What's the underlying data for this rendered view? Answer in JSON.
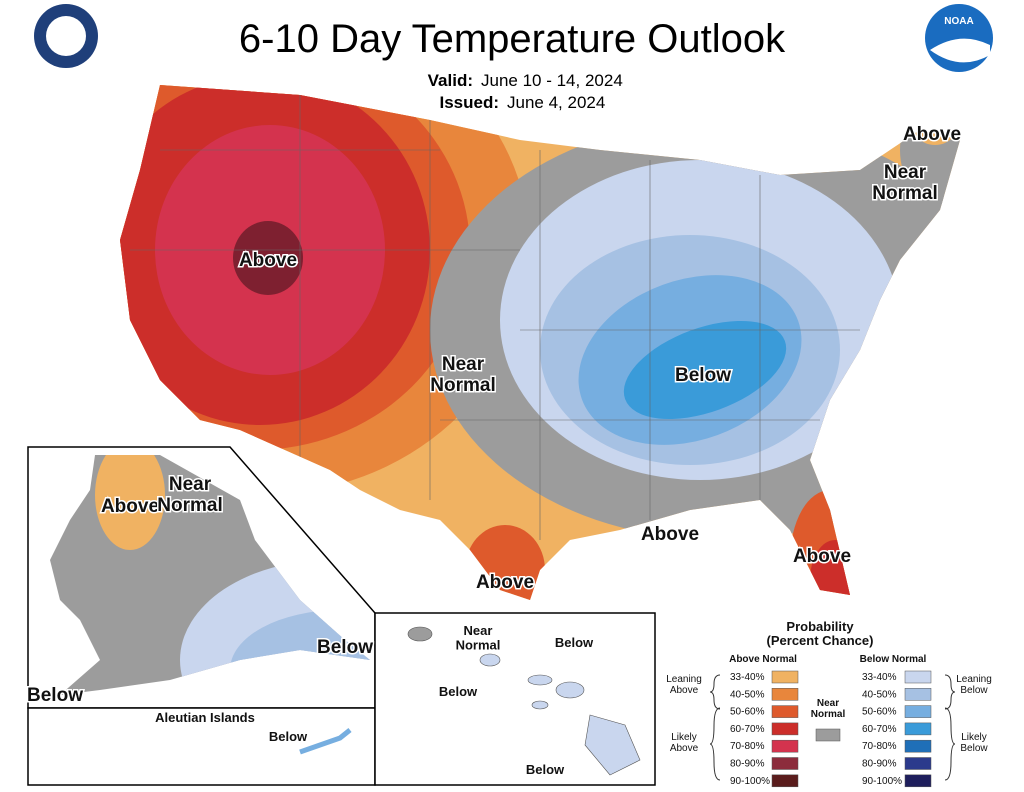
{
  "header": {
    "title": "6-10 Day Temperature Outlook",
    "valid_label": "Valid:",
    "valid": "June 10 - 14, 2024",
    "issued_label": "Issued:",
    "issued": "June 4, 2024"
  },
  "logo": "NOAA",
  "conus_labels": [
    "Above",
    "Near Normal",
    "Below",
    "Above",
    "Near Normal",
    "Above",
    "Above",
    "Above"
  ],
  "alaska_labels": [
    "Above",
    "Near Normal",
    "Below",
    "Below"
  ],
  "aleutian": {
    "title": "Aleutian Islands",
    "label": "Below"
  },
  "hawaii_labels": [
    "Near Normal",
    "Below",
    "Below",
    "Below"
  ],
  "legend": {
    "title": "Probability",
    "subtitle": "(Percent Chance)",
    "above_header": "Above Normal",
    "below_header": "Below Normal",
    "near_normal": "Near Normal",
    "leaning_above": "Leaning Above",
    "likely_above": "Likely Above",
    "leaning_below": "Leaning Below",
    "likely_below": "Likely Below",
    "ranges": [
      "33-40%",
      "40-50%",
      "50-60%",
      "60-70%",
      "70-80%",
      "80-90%",
      "90-100%"
    ],
    "above_colors": [
      "#f0b262",
      "#e8863c",
      "#de5a2c",
      "#cc2e2a",
      "#d4334e",
      "#8c2c3c",
      "#5a1c1c"
    ],
    "below_colors": [
      "#c9d6ee",
      "#a6c1e3",
      "#76aee0",
      "#3a9bd9",
      "#1f6fb8",
      "#2b3a8c",
      "#1e1e5c"
    ],
    "near_color": "#9c9c9c"
  }
}
